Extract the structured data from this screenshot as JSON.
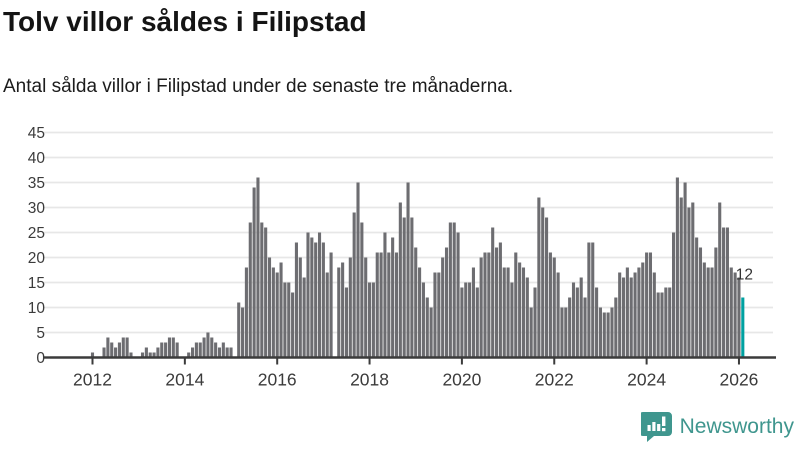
{
  "header": {
    "title": "Tolv villor såldes i Filipstad",
    "subtitle": "Antal sålda villor i Filipstad under de senaste tre månaderna."
  },
  "branding": {
    "name": "Newsworthy",
    "color": "#3F968E",
    "icon": "bar-chart-speech-bubble-icon"
  },
  "chart_data": {
    "type": "bar",
    "title": "Tolv villor såldes i Filipstad",
    "subtitle": "Antal sålda villor i Filipstad under de senaste tre månaderna.",
    "xlabel": "",
    "ylabel": "",
    "x_start": "2012-01",
    "frequency": "monthly",
    "x_tick_labels": [
      "2012",
      "2014",
      "2016",
      "2018",
      "2020",
      "2022",
      "2024",
      "2026"
    ],
    "y_ticks": [
      0,
      5,
      10,
      15,
      20,
      25,
      30,
      35,
      40,
      45
    ],
    "ylim": [
      0,
      45
    ],
    "grid": "horizontal",
    "legend": "none",
    "bar_color": "#6D6D71",
    "highlight_color": "#00A1A1",
    "axis_color": "#3B3B3B",
    "grid_color": "#E7E7E7",
    "last_value_label": "12",
    "highlight_last": true,
    "values": [
      1,
      0,
      0,
      2,
      4,
      3,
      2,
      3,
      4,
      4,
      1,
      0,
      0,
      1,
      2,
      1,
      1,
      2,
      3,
      3,
      4,
      4,
      3,
      0,
      0,
      1,
      2,
      3,
      3,
      4,
      5,
      4,
      3,
      2,
      3,
      2,
      2,
      0,
      11,
      10,
      18,
      27,
      34,
      36,
      27,
      26,
      20,
      18,
      17,
      19,
      15,
      15,
      13,
      23,
      20,
      16,
      25,
      24,
      23,
      25,
      23,
      17,
      21,
      0,
      18,
      19,
      14,
      20,
      29,
      35,
      27,
      20,
      15,
      15,
      21,
      21,
      25,
      21,
      24,
      21,
      31,
      28,
      35,
      28,
      22,
      18,
      15,
      12,
      10,
      17,
      17,
      20,
      22,
      27,
      27,
      25,
      14,
      15,
      15,
      18,
      14,
      20,
      21,
      21,
      26,
      22,
      23,
      18,
      18,
      15,
      21,
      19,
      18,
      16,
      10,
      14,
      32,
      30,
      28,
      21,
      20,
      17,
      10,
      10,
      12,
      15,
      14,
      16,
      12,
      23,
      23,
      14,
      10,
      9,
      9,
      10,
      12,
      17,
      16,
      18,
      16,
      17,
      18,
      19,
      21,
      21,
      17,
      13,
      13,
      14,
      14,
      25,
      36,
      32,
      35,
      30,
      31,
      24,
      22,
      19,
      18,
      18,
      22,
      31,
      26,
      26,
      18,
      17,
      16,
      12
    ]
  }
}
